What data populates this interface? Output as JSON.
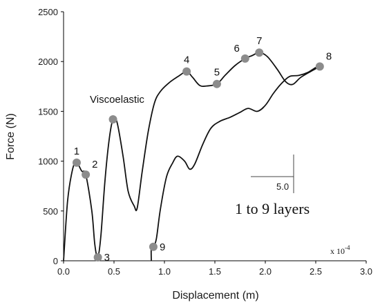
{
  "chart_data": {
    "type": "line",
    "xlabel": "Displacement (m)",
    "ylabel": "Force (N)",
    "xlim": [
      0,
      3.0
    ],
    "ylim": [
      0,
      2500
    ],
    "x_ticks": [
      "0.0",
      "0.5",
      "1.0",
      "1.5",
      "2.0",
      "2.5",
      "3.0"
    ],
    "x_tick_values": [
      0,
      0.5,
      1.0,
      1.5,
      2.0,
      2.5,
      3.0
    ],
    "y_ticks": [
      "0",
      "500",
      "1000",
      "1500",
      "2000",
      "2500"
    ],
    "y_tick_values": [
      0,
      500,
      1000,
      1500,
      2000,
      2500
    ],
    "x_multiplier_label": "x 10",
    "x_multiplier_exp": "-4",
    "scale_bar_label": "5.0",
    "grid": false,
    "series": [
      {
        "line_color": "#111111",
        "values": [
          [
            0.0,
            0
          ],
          [
            0.04,
            600
          ],
          [
            0.09,
            920
          ],
          [
            0.13,
            985
          ],
          [
            0.18,
            900
          ],
          [
            0.22,
            865
          ],
          [
            0.28,
            500
          ],
          [
            0.31,
            160
          ],
          [
            0.34,
            35
          ],
          [
            0.37,
            250
          ],
          [
            0.41,
            800
          ],
          [
            0.45,
            1200
          ],
          [
            0.49,
            1420
          ],
          [
            0.53,
            1390
          ],
          [
            0.59,
            1050
          ],
          [
            0.64,
            700
          ],
          [
            0.7,
            550
          ],
          [
            0.73,
            530
          ],
          [
            0.78,
            900
          ],
          [
            0.84,
            1300
          ],
          [
            0.9,
            1580
          ],
          [
            0.96,
            1700
          ],
          [
            1.05,
            1790
          ],
          [
            1.15,
            1860
          ],
          [
            1.22,
            1900
          ],
          [
            1.28,
            1840
          ],
          [
            1.35,
            1760
          ],
          [
            1.42,
            1755
          ],
          [
            1.52,
            1775
          ],
          [
            1.6,
            1860
          ],
          [
            1.7,
            1960
          ],
          [
            1.8,
            2030
          ],
          [
            1.87,
            2060
          ],
          [
            1.94,
            2090
          ],
          [
            2.02,
            2050
          ],
          [
            2.12,
            1920
          ],
          [
            2.2,
            1800
          ],
          [
            2.27,
            1770
          ],
          [
            2.35,
            1840
          ],
          [
            2.45,
            1900
          ],
          [
            2.54,
            1950
          ]
        ]
      },
      {
        "line_color": "#111111",
        "values": [
          [
            0.87,
            0
          ],
          [
            0.87,
            130
          ],
          [
            0.89,
            140
          ],
          [
            0.92,
            220
          ],
          [
            0.96,
            520
          ],
          [
            1.02,
            840
          ],
          [
            1.08,
            980
          ],
          [
            1.13,
            1050
          ],
          [
            1.2,
            1000
          ],
          [
            1.25,
            920
          ],
          [
            1.3,
            970
          ],
          [
            1.38,
            1170
          ],
          [
            1.46,
            1330
          ],
          [
            1.55,
            1400
          ],
          [
            1.65,
            1440
          ],
          [
            1.75,
            1490
          ],
          [
            1.83,
            1530
          ],
          [
            1.92,
            1500
          ],
          [
            2.0,
            1560
          ],
          [
            2.08,
            1680
          ],
          [
            2.16,
            1780
          ],
          [
            2.24,
            1850
          ],
          [
            2.33,
            1860
          ],
          [
            2.42,
            1890
          ],
          [
            2.5,
            1940
          ],
          [
            2.54,
            1950
          ]
        ]
      }
    ],
    "markers": [
      {
        "label": "1",
        "x": 0.13,
        "y": 985,
        "label_side": "above"
      },
      {
        "label": "2",
        "x": 0.22,
        "y": 865,
        "label_side": "upper-right"
      },
      {
        "label": "3",
        "x": 0.34,
        "y": 35,
        "label_side": "right"
      },
      {
        "label": "",
        "x": 0.49,
        "y": 1420,
        "label_side": "none"
      },
      {
        "label": "4",
        "x": 1.22,
        "y": 1900,
        "label_side": "above"
      },
      {
        "label": "5",
        "x": 1.52,
        "y": 1775,
        "label_side": "above"
      },
      {
        "label": "6",
        "x": 1.8,
        "y": 2030,
        "label_side": "above-left"
      },
      {
        "label": "7",
        "x": 1.94,
        "y": 2090,
        "label_side": "above"
      },
      {
        "label": "8",
        "x": 2.54,
        "y": 1950,
        "label_side": "upper-right"
      },
      {
        "label": "9",
        "x": 0.89,
        "y": 140,
        "label_side": "right"
      }
    ],
    "marker_color": "#8c8c8c",
    "annotations": {
      "viscoelastic": "Viscoelastic",
      "layers": "1 to 9 layers"
    }
  }
}
